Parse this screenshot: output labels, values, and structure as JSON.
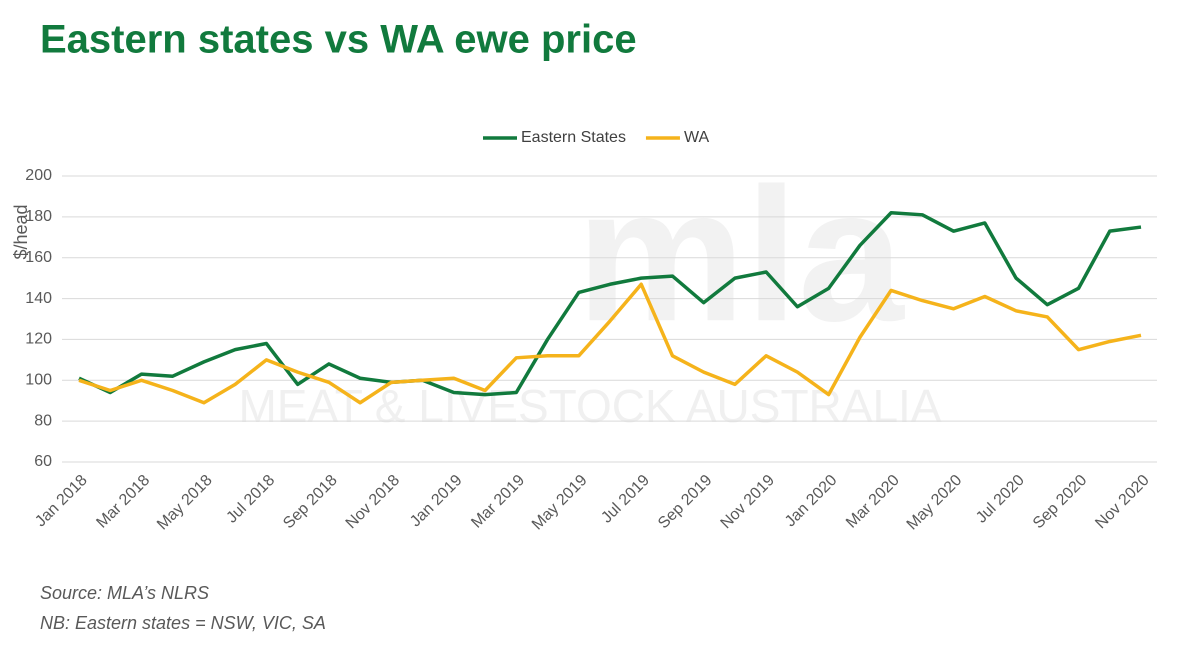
{
  "chart_data": {
    "type": "line",
    "title": "Eastern states vs WA ewe price",
    "y_label": "$/head",
    "watermark": [
      "mla",
      "MEAT & LIVESTOCK AUSTRALIA"
    ],
    "notes": [
      "Source: MLA’s NLRS",
      "NB: Eastern states = NSW, VIC, SA"
    ],
    "categories": [
      "Jan 2018",
      null,
      "Mar 2018",
      null,
      "May 2018",
      null,
      "Jul 2018",
      null,
      "Sep 2018",
      null,
      "Nov 2018",
      null,
      "Jan 2019",
      null,
      "Mar 2019",
      null,
      "May 2019",
      null,
      "Jul 2019",
      null,
      "Sep 2019",
      null,
      "Nov 2019",
      null,
      "Jan 2020",
      null,
      "Mar 2020",
      null,
      "May 2020",
      null,
      "Jul 2020",
      null,
      "Sep 2020",
      null,
      "Nov 2020"
    ],
    "series": [
      {
        "name": "Eastern States",
        "color": "#117a3d",
        "values": [
          101,
          94,
          103,
          102,
          109,
          115,
          118,
          98,
          108,
          101,
          99,
          100,
          94,
          93,
          94,
          120,
          143,
          147,
          150,
          151,
          138,
          150,
          153,
          136,
          145,
          166,
          182,
          181,
          173,
          177,
          150,
          137,
          145,
          173,
          175
        ]
      },
      {
        "name": "WA",
        "color": "#f5b31b",
        "values": [
          100,
          95,
          100,
          95,
          89,
          98,
          110,
          104,
          99,
          89,
          99,
          100,
          101,
          95,
          111,
          112,
          112,
          129,
          147,
          112,
          104,
          98,
          112,
          104,
          93,
          121,
          144,
          139,
          135,
          141,
          134,
          131,
          115,
          119,
          122
        ]
      }
    ],
    "ylim": [
      60,
      200
    ],
    "yticks": [
      60,
      80,
      100,
      120,
      140,
      160,
      180,
      200
    ],
    "grid": true,
    "legend": "top"
  }
}
